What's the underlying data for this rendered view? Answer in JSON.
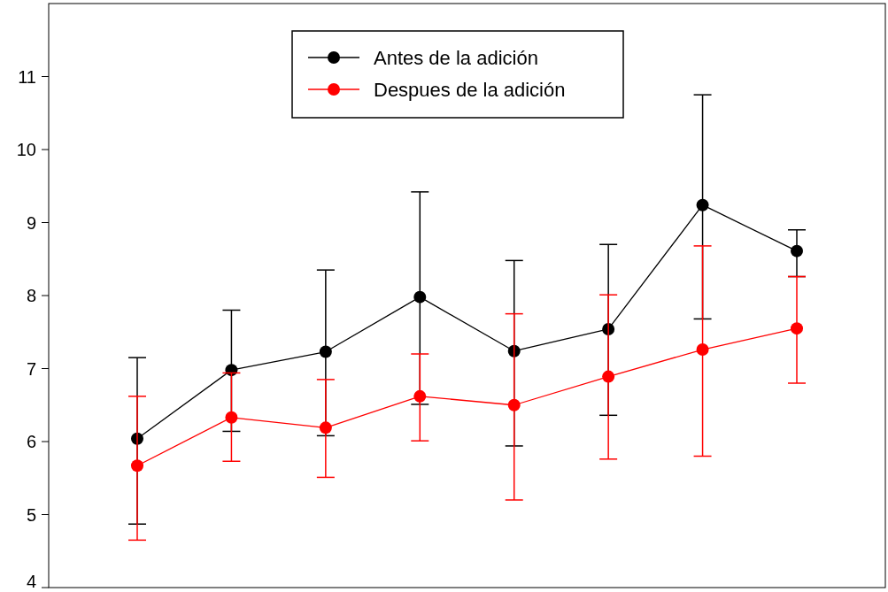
{
  "chart_data": {
    "type": "line",
    "categories": [
      null,
      null,
      null,
      null,
      null,
      null,
      null,
      null
    ],
    "series": [
      {
        "name": "Antes de la adición",
        "color": "#000000",
        "values": [
          6.04,
          6.98,
          7.23,
          7.98,
          7.24,
          7.54,
          9.24,
          8.61
        ],
        "errors": [
          [
            4.87,
            7.15
          ],
          [
            6.14,
            7.8
          ],
          [
            6.08,
            8.35
          ],
          [
            6.51,
            9.42
          ],
          [
            5.94,
            8.48
          ],
          [
            6.36,
            8.7
          ],
          [
            7.68,
            10.75
          ],
          [
            8.26,
            8.9
          ]
        ]
      },
      {
        "name": "Despues de la adición",
        "color": "#ff0000",
        "values": [
          5.67,
          6.33,
          6.19,
          6.62,
          6.5,
          6.89,
          7.26,
          7.55
        ],
        "errors": [
          [
            4.65,
            6.62
          ],
          [
            5.73,
            6.94
          ],
          [
            5.51,
            6.85
          ],
          [
            6.01,
            7.2
          ],
          [
            5.2,
            7.75
          ],
          [
            5.76,
            8.01
          ],
          [
            5.8,
            8.68
          ],
          [
            6.8,
            8.26
          ]
        ]
      }
    ],
    "ylim": [
      4,
      12
    ],
    "yticks": [
      4,
      5,
      6,
      7,
      8,
      9,
      10,
      11
    ],
    "grid": false,
    "legend": "top",
    "marker": "circle",
    "line_style": "solid"
  }
}
